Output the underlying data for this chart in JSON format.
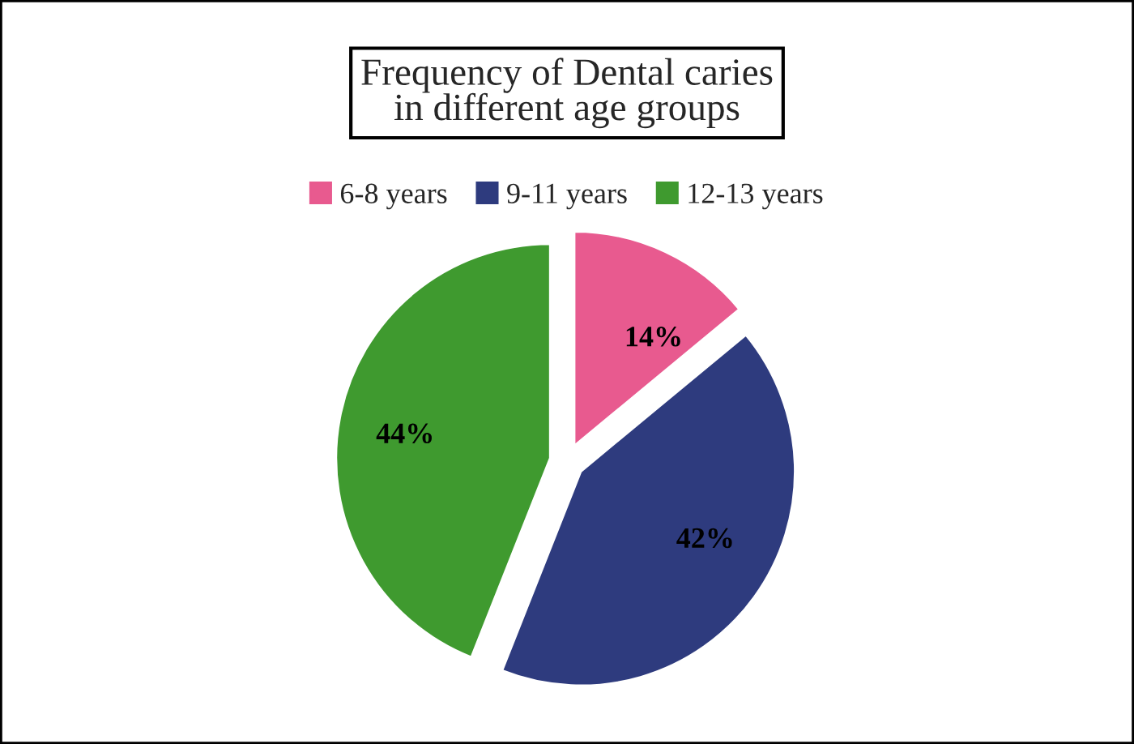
{
  "chart_data": {
    "type": "pie",
    "title": "Frequency of Dental caries\nin different age groups",
    "categories": [
      "6-8 years",
      "9-11 years",
      "12-13 years"
    ],
    "values": [
      14,
      42,
      44
    ],
    "colors": [
      "#e85a8f",
      "#2e3b7e",
      "#3f9a2f"
    ],
    "value_labels": [
      "14%",
      "42%",
      "44%"
    ],
    "legend": "top"
  }
}
